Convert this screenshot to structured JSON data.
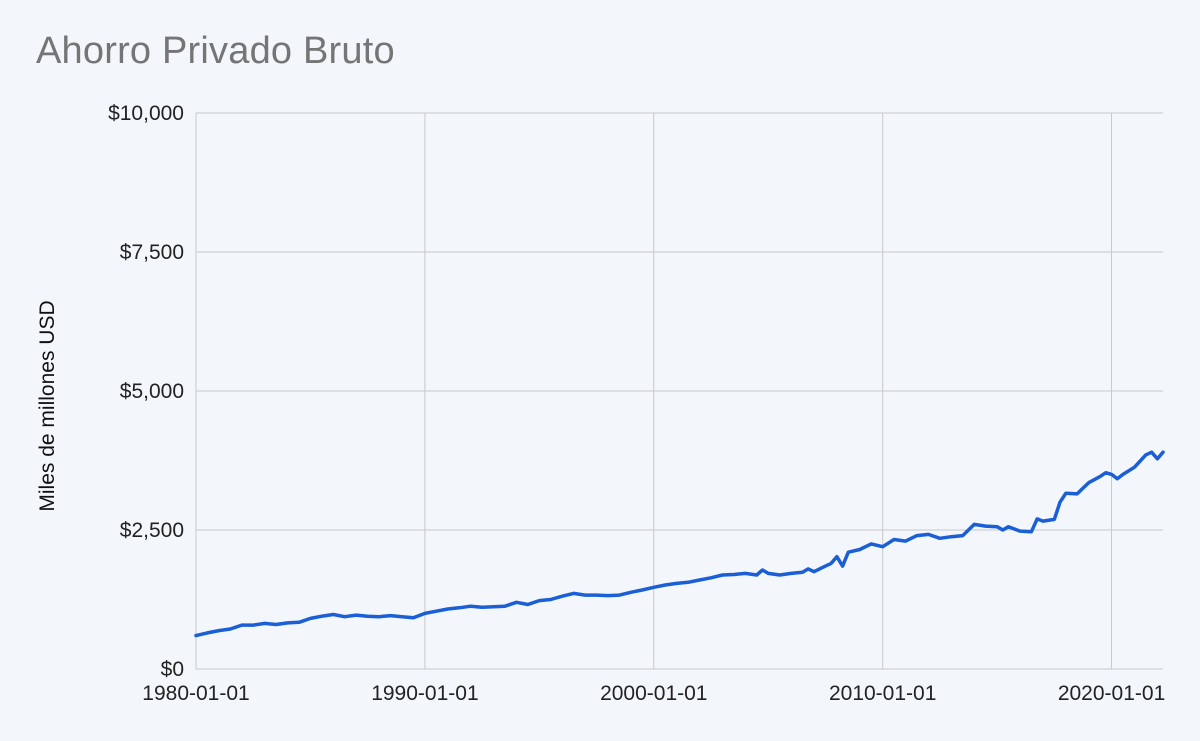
{
  "chart_data": {
    "type": "line",
    "title": "Ahorro Privado Bruto",
    "ylabel": "Miles de millones USD",
    "xlabel": "",
    "x_tick_labels": [
      "1980-01-01",
      "1990-01-01",
      "2000-01-01",
      "2010-01-01",
      "2020-01-01"
    ],
    "y_tick_labels": [
      "$0",
      "$2,500",
      "$5,000",
      "$7,500",
      "$10,000"
    ],
    "y_ticks": [
      0,
      2500,
      5000,
      7500,
      10000
    ],
    "ylim": [
      0,
      10000
    ],
    "xlim": [
      "1980-01-01",
      "2022-04-01"
    ],
    "grid": true,
    "line_color": "#1a5fd6",
    "series": [
      {
        "points": [
          [
            "1980-01-01",
            600
          ],
          [
            "1980-07-01",
            650
          ],
          [
            "1981-01-01",
            690
          ],
          [
            "1981-07-01",
            720
          ],
          [
            "1982-01-01",
            790
          ],
          [
            "1982-07-01",
            790
          ],
          [
            "1983-01-01",
            820
          ],
          [
            "1983-07-01",
            800
          ],
          [
            "1984-01-01",
            830
          ],
          [
            "1984-07-01",
            840
          ],
          [
            "1985-01-01",
            910
          ],
          [
            "1985-07-01",
            950
          ],
          [
            "1986-01-01",
            980
          ],
          [
            "1986-07-01",
            940
          ],
          [
            "1987-01-01",
            970
          ],
          [
            "1987-07-01",
            950
          ],
          [
            "1988-01-01",
            940
          ],
          [
            "1988-07-01",
            960
          ],
          [
            "1989-01-01",
            940
          ],
          [
            "1989-07-01",
            920
          ],
          [
            "1990-01-01",
            1000
          ],
          [
            "1990-07-01",
            1040
          ],
          [
            "1991-01-01",
            1080
          ],
          [
            "1991-07-01",
            1100
          ],
          [
            "1992-01-01",
            1130
          ],
          [
            "1992-07-01",
            1110
          ],
          [
            "1993-01-01",
            1120
          ],
          [
            "1993-07-01",
            1130
          ],
          [
            "1994-01-01",
            1200
          ],
          [
            "1994-07-01",
            1160
          ],
          [
            "1995-01-01",
            1230
          ],
          [
            "1995-07-01",
            1250
          ],
          [
            "1996-01-01",
            1310
          ],
          [
            "1996-07-01",
            1360
          ],
          [
            "1997-01-01",
            1330
          ],
          [
            "1997-07-01",
            1330
          ],
          [
            "1998-01-01",
            1320
          ],
          [
            "1998-07-01",
            1330
          ],
          [
            "1999-01-01",
            1380
          ],
          [
            "1999-07-01",
            1420
          ],
          [
            "2000-01-01",
            1470
          ],
          [
            "2000-07-01",
            1510
          ],
          [
            "2001-01-01",
            1540
          ],
          [
            "2001-07-01",
            1560
          ],
          [
            "2002-01-01",
            1600
          ],
          [
            "2002-07-01",
            1640
          ],
          [
            "2003-01-01",
            1690
          ],
          [
            "2003-07-01",
            1700
          ],
          [
            "2004-01-01",
            1720
          ],
          [
            "2004-07-01",
            1690
          ],
          [
            "2004-10-01",
            1780
          ],
          [
            "2005-01-01",
            1720
          ],
          [
            "2005-07-01",
            1690
          ],
          [
            "2006-01-01",
            1720
          ],
          [
            "2006-07-01",
            1740
          ],
          [
            "2006-10-01",
            1800
          ],
          [
            "2007-01-01",
            1750
          ],
          [
            "2007-07-01",
            1850
          ],
          [
            "2007-10-01",
            1900
          ],
          [
            "2008-01-01",
            2020
          ],
          [
            "2008-04-01",
            1850
          ],
          [
            "2008-07-01",
            2100
          ],
          [
            "2009-01-01",
            2150
          ],
          [
            "2009-07-01",
            2250
          ],
          [
            "2010-01-01",
            2200
          ],
          [
            "2010-07-01",
            2330
          ],
          [
            "2011-01-01",
            2300
          ],
          [
            "2011-07-01",
            2400
          ],
          [
            "2012-01-01",
            2420
          ],
          [
            "2012-07-01",
            2350
          ],
          [
            "2013-01-01",
            2380
          ],
          [
            "2013-07-01",
            2400
          ],
          [
            "2014-01-01",
            2600
          ],
          [
            "2014-07-01",
            2570
          ],
          [
            "2015-01-01",
            2560
          ],
          [
            "2015-04-01",
            2500
          ],
          [
            "2015-07-01",
            2560
          ],
          [
            "2016-01-01",
            2480
          ],
          [
            "2016-07-01",
            2470
          ],
          [
            "2016-10-01",
            2700
          ],
          [
            "2017-01-01",
            2660
          ],
          [
            "2017-07-01",
            2690
          ],
          [
            "2017-10-01",
            3000
          ],
          [
            "2018-01-01",
            3160
          ],
          [
            "2018-07-01",
            3150
          ],
          [
            "2018-10-01",
            3250
          ],
          [
            "2019-01-01",
            3350
          ],
          [
            "2019-07-01",
            3460
          ],
          [
            "2019-10-01",
            3530
          ],
          [
            "2020-01-01",
            3500
          ],
          [
            "2020-04-01",
            3420
          ],
          [
            "2020-07-01",
            3500
          ],
          [
            "2021-01-01",
            3630
          ],
          [
            "2021-07-01",
            3850
          ],
          [
            "2021-10-01",
            3900
          ],
          [
            "2022-01-01",
            3780
          ],
          [
            "2022-04-01",
            3900
          ]
        ]
      }
    ]
  }
}
